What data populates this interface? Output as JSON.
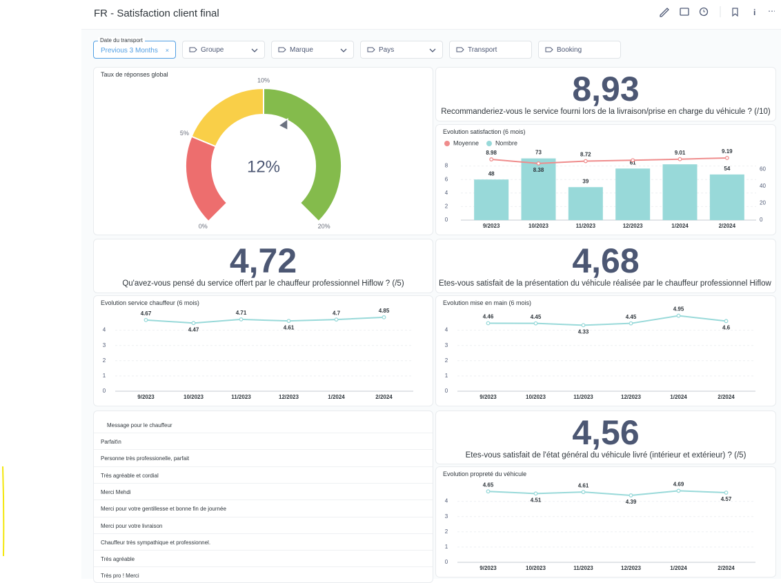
{
  "header": {
    "title": "FR - Satisfaction client final"
  },
  "date_filter": {
    "label": "Date du transport",
    "value": "Previous 3 Months"
  },
  "filters": [
    {
      "label": "Groupe",
      "dropdown": true
    },
    {
      "label": "Marque",
      "dropdown": true
    },
    {
      "label": "Pays",
      "dropdown": true
    },
    {
      "label": "Transport",
      "dropdown": false
    },
    {
      "label": "Booking",
      "dropdown": false
    }
  ],
  "gauge": {
    "title": "Taux de réponses global",
    "value": 12,
    "value_label": "12%",
    "ticks": [
      {
        "value": 0,
        "label": "0%"
      },
      {
        "value": 5,
        "label": "5%"
      },
      {
        "value": 10,
        "label": "10%"
      },
      {
        "value": 20,
        "label": "20%"
      }
    ],
    "segments": [
      {
        "min": 0,
        "max": 5,
        "color": "#ed6e6e"
      },
      {
        "min": 5,
        "max": 10,
        "color": "#f9cf48"
      },
      {
        "min": 10,
        "max": 20,
        "color": "#84bb4c"
      }
    ]
  },
  "kpis": [
    {
      "value": "8,93",
      "caption": "Recommanderiez-vous le service fourni lors de la livraison/prise en charge du véhicule ? (/10)"
    },
    {
      "value": "4,72",
      "caption": "Qu'avez-vous pensé du service offert par le chauffeur professionnel Hiflow ? (/5)"
    },
    {
      "value": "4,68",
      "caption": "Êtes-vous satisfait de la présentation du véhicule réalisée par le chauffeur professionnel Hiflow ? (…"
    },
    {
      "value": "4,56",
      "caption": "Êtes-vous satisfait de l'état général du véhicule livré (intérieur et extérieur) ? (/5)"
    }
  ],
  "charts": [
    {
      "type": "combo",
      "title": "Evolution satisfaction (6 mois)",
      "categories": [
        "9/2023",
        "10/2023",
        "11/2023",
        "12/2023",
        "1/2024",
        "2/2024"
      ],
      "series": [
        {
          "name": "Moyenne",
          "type": "line",
          "color": "#ef8c8c",
          "values": [
            8.98,
            8.38,
            8.72,
            8.85,
            9.01,
            9.19
          ],
          "value_labels": [
            "8.98",
            "8.38",
            "8.72",
            null,
            "9.01",
            "9.19"
          ]
        },
        {
          "name": "Nombre",
          "type": "bar",
          "axis": "y2",
          "color": "#98d9d9",
          "values": [
            48,
            73,
            39,
            61,
            66,
            54
          ],
          "value_labels": [
            "48",
            "73",
            "39",
            "61",
            null,
            "54"
          ]
        }
      ],
      "ylim": [
        0,
        10
      ],
      "yticks": [
        0,
        2,
        4,
        6,
        8
      ],
      "y2lim": [
        0,
        80
      ],
      "y2ticks": [
        0,
        20,
        40,
        60
      ]
    },
    {
      "type": "line",
      "title": "Evolution service chauffeur (6 mois)",
      "categories": [
        "9/2023",
        "10/2023",
        "11/2023",
        "12/2023",
        "1/2024",
        "2/2024"
      ],
      "color": "#98d9d9",
      "values": [
        4.67,
        4.47,
        4.71,
        4.61,
        4.7,
        4.85
      ],
      "ylim": [
        0,
        5.25
      ],
      "yticks": [
        0,
        1,
        2,
        3,
        4
      ]
    },
    {
      "type": "line",
      "title": "Evolution mise en main (6 mois)",
      "categories": [
        "9/2023",
        "10/2023",
        "11/2023",
        "12/2023",
        "1/2024",
        "2/2024"
      ],
      "color": "#98d9d9",
      "values": [
        4.46,
        4.45,
        4.33,
        4.45,
        4.95,
        4.6
      ],
      "ylim": [
        0,
        5.25
      ],
      "yticks": [
        0,
        1,
        2,
        3,
        4
      ]
    },
    {
      "type": "line",
      "title": "Evolution propreté du véhicule",
      "categories": [
        "9/2023",
        "10/2023",
        "11/2023",
        "12/2023",
        "1/2024",
        "2/2024"
      ],
      "color": "#98d9d9",
      "values": [
        4.65,
        4.51,
        4.61,
        4.39,
        4.69,
        4.57
      ],
      "ylim": [
        0,
        5.25
      ],
      "yticks": [
        0,
        1,
        2,
        3,
        4
      ]
    }
  ],
  "table": {
    "header": "Message pour le chauffeur",
    "rows": [
      "Parfait\\n",
      "Personne très professionelle, parfait",
      "Très agréable et cordial",
      "Merci Mehdi",
      "Merci pour votre gentillesse et bonne fin de journée",
      "Merci pour votre livraison",
      "Chauffeur très sympathique et professionnel.",
      "Très agréable",
      "Très pro ! Merci"
    ]
  }
}
